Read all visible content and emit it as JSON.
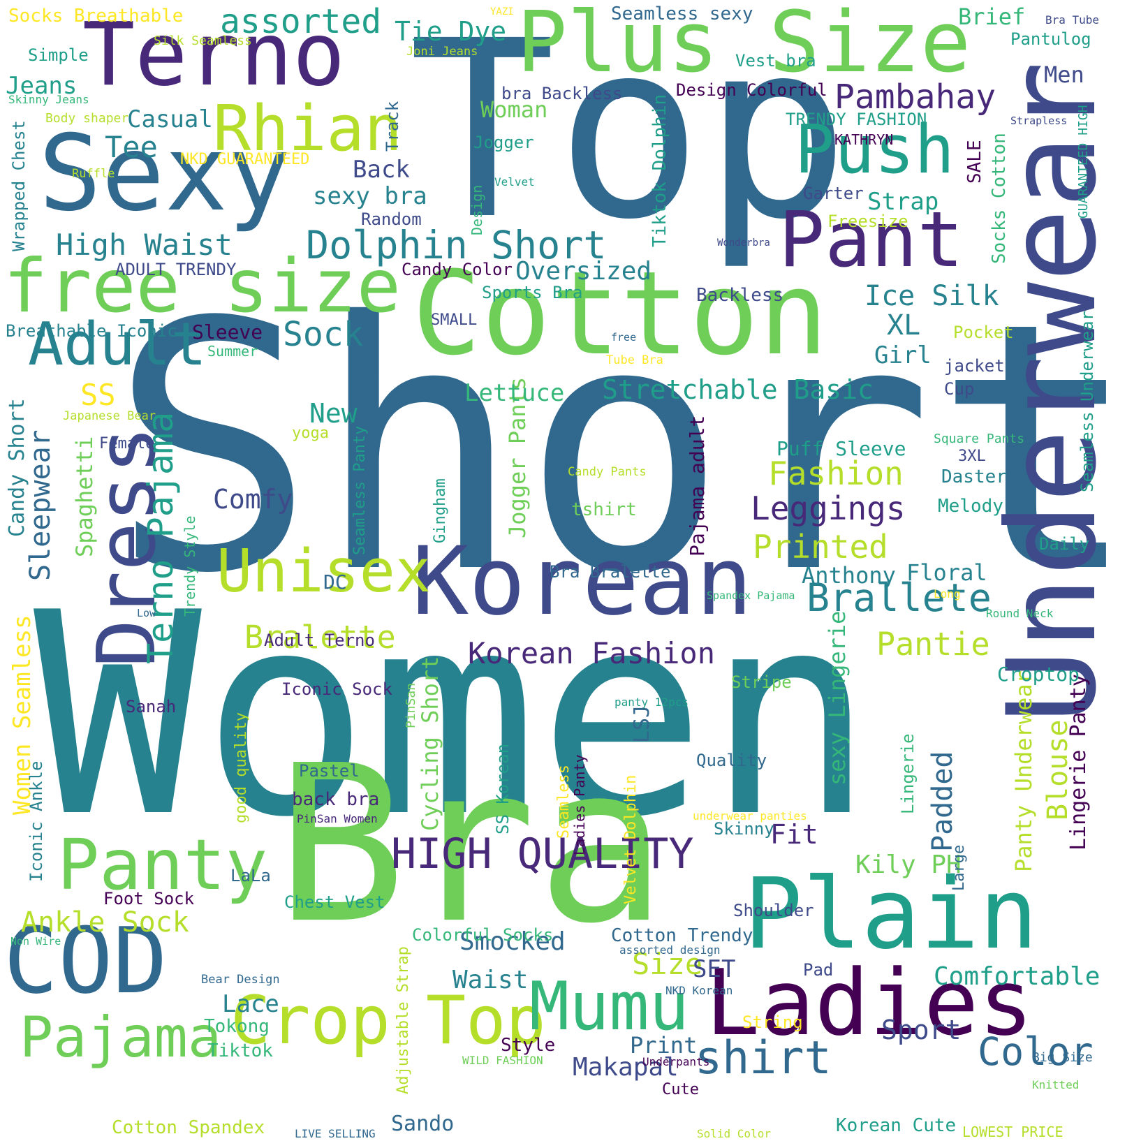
{
  "palette": {
    "p1": "#440154",
    "p2": "#482878",
    "p3": "#3e4a89",
    "p4": "#31688e",
    "p5": "#26828e",
    "p6": "#1f9e89",
    "p7": "#35b779",
    "p8": "#6ece58",
    "p9": "#b5de2b",
    "p10": "#fde725"
  },
  "words": [
    {
      "text": "Short",
      "color": "p4"
    },
    {
      "text": "Women",
      "color": "p5"
    },
    {
      "text": "Top",
      "color": "p4"
    },
    {
      "text": "Bra",
      "color": "p8"
    },
    {
      "text": "Cotton",
      "color": "p8"
    },
    {
      "text": "Underwear",
      "color": "p3"
    },
    {
      "text": "Korean",
      "color": "p3"
    },
    {
      "text": "Plus Size",
      "color": "p8"
    },
    {
      "text": "Terno",
      "color": "p2"
    },
    {
      "text": "Sexy",
      "color": "p4"
    },
    {
      "text": "Plain",
      "color": "p6"
    },
    {
      "text": "Ladies",
      "color": "p1"
    },
    {
      "text": "Pant",
      "color": "p2"
    },
    {
      "text": "COD",
      "color": "p4"
    },
    {
      "text": "Dress",
      "color": "p3"
    },
    {
      "text": "free size",
      "color": "p8"
    },
    {
      "text": "Push",
      "color": "p6"
    },
    {
      "text": "Panty",
      "color": "p8"
    },
    {
      "text": "Crop",
      "color": "p9"
    },
    {
      "text": "Top",
      "color": "p9"
    },
    {
      "text": "Mumu",
      "color": "p7"
    },
    {
      "text": "Pajama",
      "color": "p8"
    },
    {
      "text": "Unisex",
      "color": "p9"
    },
    {
      "text": "Rhian",
      "color": "p9"
    },
    {
      "text": "Adult",
      "color": "p5"
    },
    {
      "text": "HIGH QUALITY",
      "color": "p2"
    },
    {
      "text": "shirt",
      "color": "p4"
    },
    {
      "text": "Color",
      "color": "p4"
    },
    {
      "text": "Terno Pajama",
      "color": "p6"
    },
    {
      "text": "Dolphin Short",
      "color": "p5"
    },
    {
      "text": "Brallete",
      "color": "p5"
    },
    {
      "text": "Korean Fashion",
      "color": "p2"
    },
    {
      "text": "Pambahay",
      "color": "p2"
    },
    {
      "text": "assorted",
      "color": "p6"
    },
    {
      "text": "Sleepwear",
      "color": "p4"
    },
    {
      "text": "Leggings",
      "color": "p2"
    },
    {
      "text": "Printed",
      "color": "p9"
    },
    {
      "text": "Fashion",
      "color": "p9"
    },
    {
      "text": "Ankle Sock",
      "color": "p9"
    },
    {
      "text": "Bralette",
      "color": "p9"
    },
    {
      "text": "High Waist",
      "color": "p5"
    },
    {
      "text": "Stretchable Basic",
      "color": "p6"
    },
    {
      "text": "Tie Dye",
      "color": "p6"
    },
    {
      "text": "Sock",
      "color": "p5"
    },
    {
      "text": "Ice Silk",
      "color": "p5"
    },
    {
      "text": "Pantie",
      "color": "p9"
    },
    {
      "text": "Comfy",
      "color": "p3"
    },
    {
      "text": "Oversized",
      "color": "p5"
    },
    {
      "text": "Tee",
      "color": "p5"
    },
    {
      "text": "Smocked",
      "color": "p4"
    },
    {
      "text": "Sport",
      "color": "p3"
    },
    {
      "text": "Comfortable",
      "color": "p6"
    },
    {
      "text": "Size",
      "color": "p9"
    },
    {
      "text": "Waist",
      "color": "p5"
    },
    {
      "text": "Makapal",
      "color": "p3"
    },
    {
      "text": "Padded",
      "color": "p4"
    },
    {
      "text": "Blouse",
      "color": "p9"
    },
    {
      "text": "Lingerie Panty",
      "color": "p1"
    },
    {
      "text": "Panty Underwear",
      "color": "p9"
    },
    {
      "text": "Kily PH",
      "color": "p8"
    },
    {
      "text": "Cycling Short",
      "color": "p8"
    },
    {
      "text": "Women Seamless",
      "color": "p10"
    },
    {
      "text": "Candy Short",
      "color": "p5"
    },
    {
      "text": "Spaghetti",
      "color": "p8"
    },
    {
      "text": "Jogger Pants",
      "color": "p8"
    },
    {
      "text": "sexy Lingerie",
      "color": "p7"
    },
    {
      "text": "Pajama adult",
      "color": "p1"
    },
    {
      "text": "Anthony",
      "color": "p5"
    },
    {
      "text": "Floral",
      "color": "p5"
    },
    {
      "text": "Puff Sleeve",
      "color": "p6"
    },
    {
      "text": "Lettuce",
      "color": "p7"
    },
    {
      "text": "New",
      "color": "p6"
    },
    {
      "text": "SS",
      "color": "p10"
    },
    {
      "text": "XL",
      "color": "p5"
    },
    {
      "text": "Girl",
      "color": "p5"
    },
    {
      "text": "Strap",
      "color": "p6"
    },
    {
      "text": "Jeans",
      "color": "p6"
    },
    {
      "text": "Casual",
      "color": "p5"
    },
    {
      "text": "Back",
      "color": "p3"
    },
    {
      "text": "sexy bra",
      "color": "p5"
    },
    {
      "text": "Woman",
      "color": "p8"
    },
    {
      "text": "Men",
      "color": "p3"
    },
    {
      "text": "Brief",
      "color": "p7"
    },
    {
      "text": "Seamless sexy",
      "color": "p4"
    },
    {
      "text": "Pantulog",
      "color": "p6"
    },
    {
      "text": "Vest bra",
      "color": "p6"
    },
    {
      "text": "bra Backless",
      "color": "p3"
    },
    {
      "text": "Design Colorful",
      "color": "p1"
    },
    {
      "text": "TRENDY FASHION",
      "color": "p6"
    },
    {
      "text": "KATHRYN",
      "color": "p1"
    },
    {
      "text": "Jogger",
      "color": "p6"
    },
    {
      "text": "Backless",
      "color": "p3"
    },
    {
      "text": "Sleeve",
      "color": "p1"
    },
    {
      "text": "Summer",
      "color": "p7"
    },
    {
      "text": "Breathable Iconic",
      "color": "p5"
    },
    {
      "text": "ADULT TRENDY",
      "color": "p3"
    },
    {
      "text": "Random",
      "color": "p3"
    },
    {
      "text": "Candy Color",
      "color": "p1"
    },
    {
      "text": "Sports Bra",
      "color": "p6"
    },
    {
      "text": "SMALL",
      "color": "p3"
    },
    {
      "text": "Freesize",
      "color": "p9"
    },
    {
      "text": "Garter",
      "color": "p3"
    },
    {
      "text": "SALE",
      "color": "p1"
    },
    {
      "text": "Socks Cotton",
      "color": "p7"
    },
    {
      "text": "Wonderbra",
      "color": "p3"
    },
    {
      "text": "Strapless",
      "color": "p3"
    },
    {
      "text": "GUARANTEED HIGH",
      "color": "p6"
    },
    {
      "text": "Seamless Underwear",
      "color": "p6"
    },
    {
      "text": "Pocket",
      "color": "p9"
    },
    {
      "text": "jacket",
      "color": "p3"
    },
    {
      "text": "Cup",
      "color": "p3"
    },
    {
      "text": "Tube Bra",
      "color": "p10"
    },
    {
      "text": "free",
      "color": "p4"
    },
    {
      "text": "Tiktok Dolphin",
      "color": "p6"
    },
    {
      "text": "Velvet",
      "color": "p6"
    },
    {
      "text": "Design",
      "color": "p7"
    },
    {
      "text": "Track",
      "color": "p4"
    },
    {
      "text": "NKD GUARANTEED",
      "color": "p10"
    },
    {
      "text": "Body shaper",
      "color": "p9"
    },
    {
      "text": "Ruffle",
      "color": "p9"
    },
    {
      "text": "Wrapped Chest",
      "color": "p5"
    },
    {
      "text": "Skinny Jeans",
      "color": "p7"
    },
    {
      "text": "Simple",
      "color": "p6"
    },
    {
      "text": "Socks Breathable",
      "color": "p10"
    },
    {
      "text": "Silk Seamless",
      "color": "p9"
    },
    {
      "text": "Joni Jeans",
      "color": "p9"
    },
    {
      "text": "YAZI",
      "color": "p10"
    },
    {
      "text": "Bra Tube",
      "color": "p3"
    },
    {
      "text": "Japanese Bear",
      "color": "p9"
    },
    {
      "text": "Female",
      "color": "p3"
    },
    {
      "text": "yoga",
      "color": "p9"
    },
    {
      "text": "Seamless Panty",
      "color": "p6"
    },
    {
      "text": "Gingham",
      "color": "p6"
    },
    {
      "text": "Candy Pants",
      "color": "p9"
    },
    {
      "text": "tshirt",
      "color": "p8"
    },
    {
      "text": "Square Pants",
      "color": "p7"
    },
    {
      "text": "3XL",
      "color": "p3"
    },
    {
      "text": "Daster",
      "color": "p5"
    },
    {
      "text": "Melody",
      "color": "p6"
    },
    {
      "text": "Daily",
      "color": "p6"
    },
    {
      "text": "Long",
      "color": "p10"
    },
    {
      "text": "Round Neck",
      "color": "p7"
    },
    {
      "text": "Croptop",
      "color": "p6"
    },
    {
      "text": "Stripe",
      "color": "p8"
    },
    {
      "text": "panty 12pcs",
      "color": "p6"
    },
    {
      "text": "Bra Bralette",
      "color": "p4"
    },
    {
      "text": "Spandex Pajama",
      "color": "p7"
    },
    {
      "text": "DC",
      "color": "p4"
    },
    {
      "text": "Low",
      "color": "p4"
    },
    {
      "text": "Trendy Style",
      "color": "p7"
    },
    {
      "text": "Adult Terno",
      "color": "p2"
    },
    {
      "text": "Iconic Sock",
      "color": "p2"
    },
    {
      "text": "Sanah",
      "color": "p2"
    },
    {
      "text": "PinSan",
      "color": "p8"
    },
    {
      "text": "LSJ",
      "color": "p4"
    },
    {
      "text": "Pastel",
      "color": "p4"
    },
    {
      "text": "back bra",
      "color": "p2"
    },
    {
      "text": "PinSan Women",
      "color": "p2"
    },
    {
      "text": "good quality",
      "color": "p9"
    },
    {
      "text": "SS Korean",
      "color": "p6"
    },
    {
      "text": "Seamless",
      "color": "p10"
    },
    {
      "text": "Ladies Panty",
      "color": "p1"
    },
    {
      "text": "Velvet Dolphin",
      "color": "p10"
    },
    {
      "text": "Quality",
      "color": "p4"
    },
    {
      "text": "underwear panties",
      "color": "p10"
    },
    {
      "text": "Skinny",
      "color": "p5"
    },
    {
      "text": "Fit",
      "color": "p2"
    },
    {
      "text": "Lingerie",
      "color": "p7"
    },
    {
      "text": "Large",
      "color": "p4"
    },
    {
      "text": "Iconic Ankle",
      "color": "p5"
    },
    {
      "text": "LaLa",
      "color": "p4"
    },
    {
      "text": "Foot Sock",
      "color": "p1"
    },
    {
      "text": "Chest Vest",
      "color": "p6"
    },
    {
      "text": "Shoulder",
      "color": "p3"
    },
    {
      "text": "Colorful Socks",
      "color": "p7"
    },
    {
      "text": "Cotton Trendy",
      "color": "p4"
    },
    {
      "text": "assorted design",
      "color": "p4"
    },
    {
      "text": "Non Wire",
      "color": "p7"
    },
    {
      "text": "Bear Design",
      "color": "p4"
    },
    {
      "text": "Lace",
      "color": "p5"
    },
    {
      "text": "Tokong",
      "color": "p7"
    },
    {
      "text": "Tiktok",
      "color": "p7"
    },
    {
      "text": "SET",
      "color": "p3"
    },
    {
      "text": "Pad",
      "color": "p3"
    },
    {
      "text": "NKD Korean",
      "color": "p4"
    },
    {
      "text": "Adjustable Strap",
      "color": "p9"
    },
    {
      "text": "String",
      "color": "p10"
    },
    {
      "text": "Style",
      "color": "p1"
    },
    {
      "text": "WILD FASHION",
      "color": "p8"
    },
    {
      "text": "Underpants",
      "color": "p1"
    },
    {
      "text": "Print",
      "color": "p4"
    },
    {
      "text": "Cute",
      "color": "p1"
    },
    {
      "text": "Big Size",
      "color": "p4"
    },
    {
      "text": "Knitted",
      "color": "p8"
    },
    {
      "text": "Cotton Spandex",
      "color": "p9"
    },
    {
      "text": "Sando",
      "color": "p4"
    },
    {
      "text": "LIVE SELLING",
      "color": "p4"
    },
    {
      "text": "Solid Color",
      "color": "p9"
    },
    {
      "text": "Korean Cute",
      "color": "p6"
    },
    {
      "text": "LOWEST PRICE",
      "color": "p9"
    }
  ]
}
